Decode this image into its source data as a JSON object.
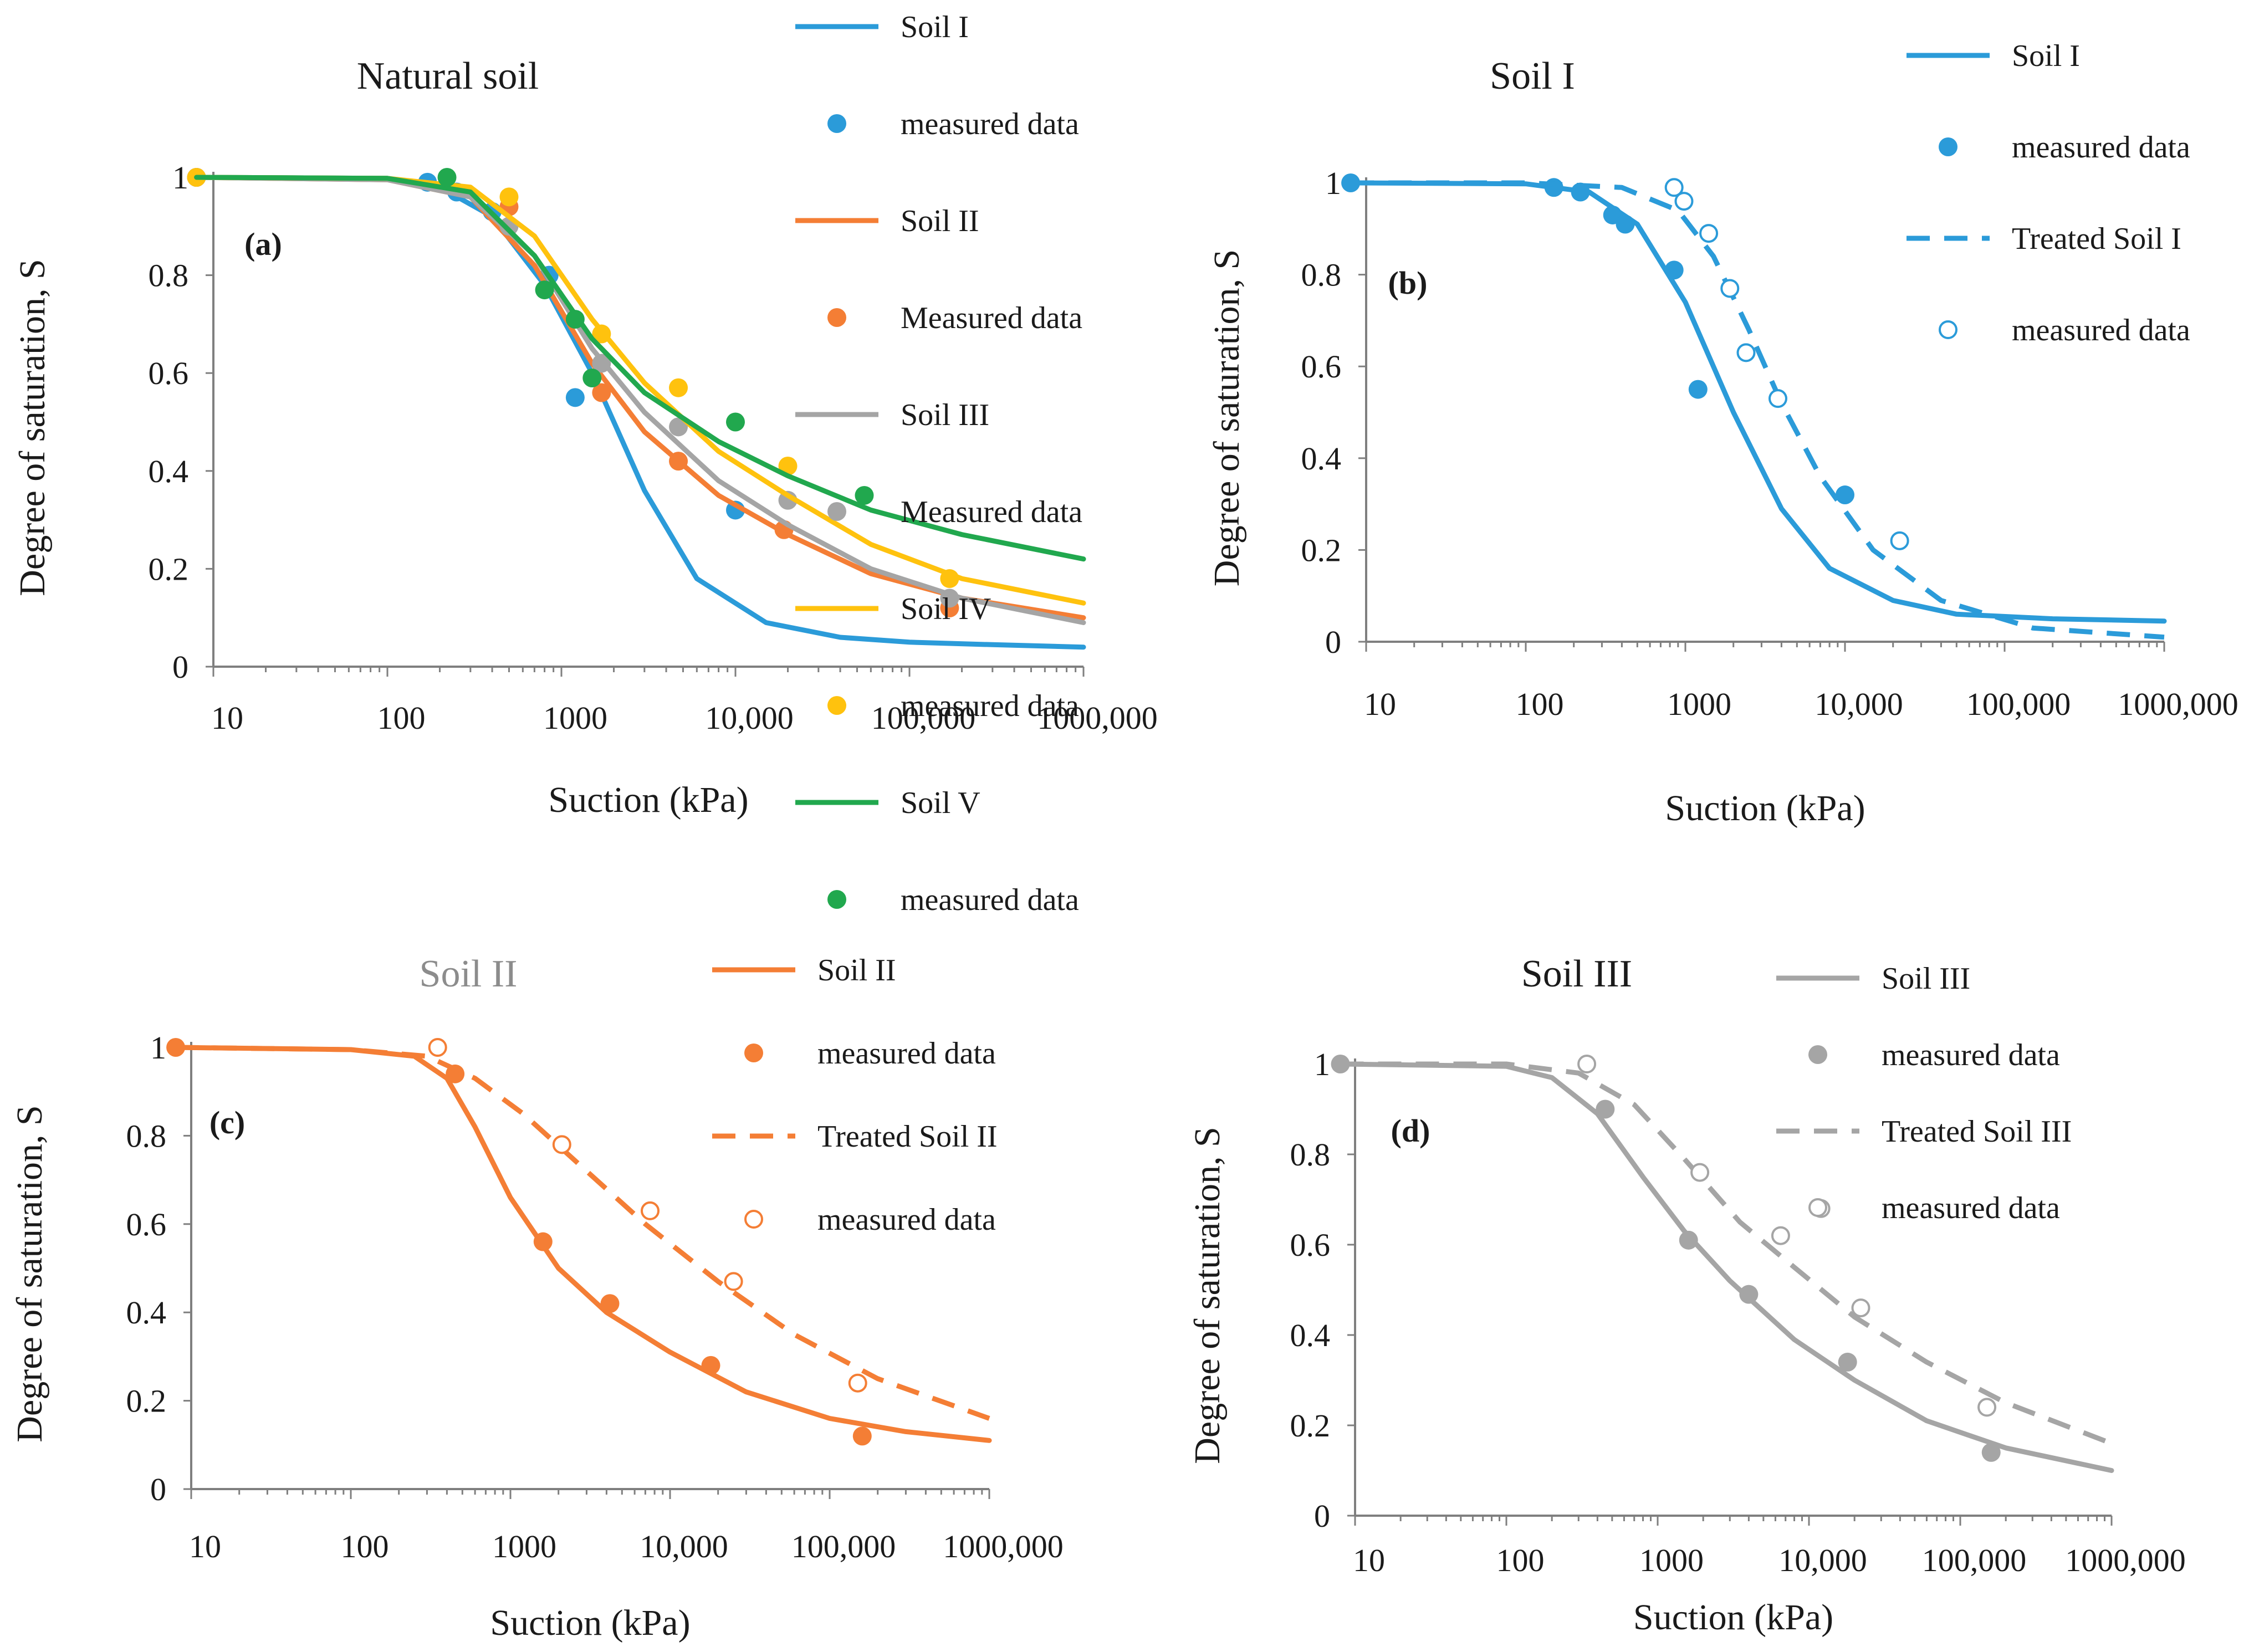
{
  "figure": {
    "colors": {
      "soil_I": "#2b9bd9",
      "soil_II": "#f47e35",
      "soil_III": "#a5a5a5",
      "soil_IV": "#ffc20e",
      "soil_V": "#21a84e",
      "title_grey": "#8c8c8c"
    }
  },
  "chart_data": [
    {
      "id": "a",
      "type": "line",
      "title": "Natural soil",
      "panel_label": "(a)",
      "xlabel": "Suction (kPa)",
      "ylabel": "Degree of saturation, S",
      "xscale": "log",
      "xlim": [
        10,
        1000000
      ],
      "ylim": [
        0,
        1
      ],
      "x_tick_values": [
        10,
        100,
        1000,
        10000,
        100000,
        1000000
      ],
      "x_tick_labels": [
        "10",
        "100",
        "1000",
        "10,000",
        "100,000",
        "1000,000"
      ],
      "y_tick_values": [
        0,
        0.2,
        0.4,
        0.6,
        0.8,
        1
      ],
      "y_tick_labels": [
        "0",
        "0.2",
        "0.4",
        "0.6",
        "0.8",
        "1"
      ],
      "legend_position": "top-right-outside",
      "series": [
        {
          "name": "Soil I",
          "kind": "line",
          "style": "solid",
          "color": "#2b9bd9",
          "x": [
            8,
            100,
            200,
            400,
            800,
            1500,
            3000,
            6000,
            15000,
            40000,
            100000,
            300000,
            1000000
          ],
          "y": [
            1,
            0.998,
            0.98,
            0.92,
            0.78,
            0.6,
            0.36,
            0.18,
            0.09,
            0.06,
            0.05,
            0.045,
            0.04
          ]
        },
        {
          "name": "measured data",
          "kind": "marker",
          "filled": true,
          "color": "#2b9bd9",
          "x": [
            8,
            170,
            250,
            400,
            850,
            1200,
            10000
          ],
          "y": [
            1,
            0.99,
            0.97,
            0.93,
            0.8,
            0.55,
            0.32
          ]
        },
        {
          "name": "Soil II",
          "kind": "line",
          "style": "solid",
          "color": "#f47e35",
          "x": [
            8,
            100,
            300,
            700,
            1500,
            3000,
            8000,
            20000,
            60000,
            200000,
            1000000
          ],
          "y": [
            1,
            0.995,
            0.96,
            0.82,
            0.62,
            0.48,
            0.35,
            0.27,
            0.19,
            0.14,
            0.1
          ]
        },
        {
          "name": "Measured data",
          "kind": "marker",
          "filled": true,
          "color": "#f47e35",
          "x": [
            8,
            500,
            1700,
            4700,
            19000,
            170000
          ],
          "y": [
            1,
            0.94,
            0.56,
            0.42,
            0.28,
            0.12
          ]
        },
        {
          "name": "Soil III",
          "kind": "line",
          "style": "solid",
          "color": "#a5a5a5",
          "x": [
            8,
            100,
            300,
            700,
            1500,
            3000,
            8000,
            20000,
            60000,
            200000,
            1000000
          ],
          "y": [
            1,
            0.995,
            0.96,
            0.84,
            0.65,
            0.52,
            0.38,
            0.29,
            0.2,
            0.14,
            0.09
          ]
        },
        {
          "name": "Measured data",
          "kind": "marker",
          "filled": true,
          "color": "#a5a5a5",
          "x": [
            8,
            500,
            1700,
            4700,
            20000,
            170000
          ],
          "y": [
            1,
            0.9,
            0.62,
            0.49,
            0.34,
            0.14
          ]
        },
        {
          "name": "Soil IV",
          "kind": "line",
          "style": "solid",
          "color": "#ffc20e",
          "x": [
            8,
            100,
            300,
            700,
            1500,
            3000,
            8000,
            20000,
            60000,
            200000,
            1000000
          ],
          "y": [
            1,
            0.998,
            0.98,
            0.88,
            0.71,
            0.58,
            0.44,
            0.35,
            0.25,
            0.18,
            0.13
          ]
        },
        {
          "name": "measured data",
          "kind": "marker",
          "filled": true,
          "color": "#ffc20e",
          "x": [
            8,
            500,
            1700,
            4700,
            20000,
            170000
          ],
          "y": [
            1,
            0.96,
            0.68,
            0.57,
            0.41,
            0.18
          ]
        },
        {
          "name": "Soil V",
          "kind": "line",
          "style": "solid",
          "color": "#21a84e",
          "x": [
            8,
            100,
            300,
            700,
            1500,
            3000,
            8000,
            20000,
            60000,
            200000,
            1000000
          ],
          "y": [
            1,
            0.998,
            0.97,
            0.84,
            0.67,
            0.56,
            0.46,
            0.39,
            0.32,
            0.27,
            0.22
          ]
        },
        {
          "name": "measured data",
          "kind": "marker",
          "filled": true,
          "color": "#21a84e",
          "x": [
            220,
            800,
            1200,
            1500,
            10000,
            55000
          ],
          "y": [
            1,
            0.77,
            0.71,
            0.59,
            0.5,
            0.35
          ]
        }
      ]
    },
    {
      "id": "b",
      "type": "line",
      "title": "Soil I",
      "panel_label": "(b)",
      "xlabel": "Suction (kPa)",
      "ylabel": "Degree of saturation, S",
      "xscale": "log",
      "xlim": [
        10,
        1000000
      ],
      "ylim": [
        0,
        1
      ],
      "x_tick_values": [
        10,
        100,
        1000,
        10000,
        100000,
        1000000
      ],
      "x_tick_labels": [
        "10",
        "100",
        "1000",
        "10,000",
        "100,000",
        "1000,000"
      ],
      "y_tick_values": [
        0,
        0.2,
        0.4,
        0.6,
        0.8,
        1
      ],
      "y_tick_labels": [
        "0",
        "0.2",
        "0.4",
        "0.6",
        "0.8",
        "1"
      ],
      "legend_position": "top-right-outside",
      "series": [
        {
          "name": "Soil I",
          "kind": "line",
          "style": "solid",
          "color": "#2b9bd9",
          "x": [
            8,
            100,
            250,
            500,
            1000,
            2000,
            4000,
            8000,
            20000,
            50000,
            200000,
            1000000
          ],
          "y": [
            1,
            0.998,
            0.98,
            0.91,
            0.74,
            0.5,
            0.29,
            0.16,
            0.09,
            0.06,
            0.05,
            0.045
          ]
        },
        {
          "name": "measured data",
          "kind": "marker",
          "filled": true,
          "color": "#2b9bd9",
          "x": [
            8,
            150,
            220,
            350,
            420,
            850,
            1200,
            10000
          ],
          "y": [
            1,
            0.99,
            0.98,
            0.93,
            0.91,
            0.81,
            0.55,
            0.32
          ]
        },
        {
          "name": "Treated Soil I",
          "kind": "line",
          "style": "dashed",
          "color": "#2b9bd9",
          "x": [
            8,
            100,
            400,
            900,
            1500,
            2500,
            4000,
            7000,
            15000,
            40000,
            150000,
            1000000
          ],
          "y": [
            1,
            1,
            0.99,
            0.94,
            0.84,
            0.68,
            0.52,
            0.36,
            0.2,
            0.09,
            0.03,
            0.01
          ]
        },
        {
          "name": "measured data",
          "kind": "marker",
          "filled": false,
          "color": "#2b9bd9",
          "x": [
            850,
            980,
            1400,
            1900,
            2400,
            3800,
            22000
          ],
          "y": [
            0.99,
            0.96,
            0.89,
            0.77,
            0.63,
            0.53,
            0.22
          ]
        }
      ]
    },
    {
      "id": "c",
      "type": "line",
      "title": "Soil II",
      "panel_label": "(c)",
      "xlabel": "Suction (kPa)",
      "ylabel": "Degree of saturation, S",
      "xscale": "log",
      "xlim": [
        10,
        1000000
      ],
      "ylim": [
        0,
        1
      ],
      "x_tick_values": [
        10,
        100,
        1000,
        10000,
        100000,
        1000000
      ],
      "x_tick_labels": [
        "10",
        "100",
        "1000",
        "10,000",
        "100,000",
        "1000,000"
      ],
      "y_tick_values": [
        0,
        0.2,
        0.4,
        0.6,
        0.8,
        1
      ],
      "y_tick_labels": [
        "0",
        "0.2",
        "0.4",
        "0.6",
        "0.8",
        "1"
      ],
      "legend_position": "top-right",
      "series": [
        {
          "name": "Soil II",
          "kind": "line",
          "style": "solid",
          "color": "#f47e35",
          "x": [
            8,
            100,
            250,
            400,
            600,
            1000,
            2000,
            4000,
            10000,
            30000,
            100000,
            300000,
            1000000
          ],
          "y": [
            1,
            0.995,
            0.98,
            0.93,
            0.82,
            0.66,
            0.5,
            0.4,
            0.31,
            0.22,
            0.16,
            0.13,
            0.11
          ]
        },
        {
          "name": "measured data",
          "kind": "marker",
          "filled": true,
          "color": "#f47e35",
          "x": [
            8,
            450,
            1600,
            4200,
            18000,
            160000
          ],
          "y": [
            1,
            0.94,
            0.56,
            0.42,
            0.28,
            0.12
          ]
        },
        {
          "name": "Treated Soil II",
          "kind": "line",
          "style": "dashed",
          "color": "#f47e35",
          "x": [
            8,
            100,
            300,
            600,
            1200,
            3000,
            7000,
            20000,
            60000,
            200000,
            1000000
          ],
          "y": [
            1,
            0.995,
            0.98,
            0.93,
            0.85,
            0.72,
            0.6,
            0.47,
            0.35,
            0.25,
            0.16
          ]
        },
        {
          "name": "measured data",
          "kind": "marker",
          "filled": false,
          "color": "#f47e35",
          "x": [
            350,
            2100,
            7500,
            25000,
            150000
          ],
          "y": [
            1,
            0.78,
            0.63,
            0.47,
            0.24
          ]
        }
      ]
    },
    {
      "id": "d",
      "type": "line",
      "title": "Soil III",
      "panel_label": "(d)",
      "xlabel": "Suction (kPa)",
      "ylabel": "Degree of saturation, S",
      "xscale": "log",
      "xlim": [
        10,
        1000000
      ],
      "ylim": [
        0,
        1
      ],
      "x_tick_values": [
        10,
        100,
        1000,
        10000,
        100000,
        1000000
      ],
      "x_tick_labels": [
        "10",
        "100",
        "1000",
        "10,000",
        "100,000",
        "1000,000"
      ],
      "y_tick_values": [
        0,
        0.2,
        0.4,
        0.6,
        0.8,
        1
      ],
      "y_tick_labels": [
        "0",
        "0.2",
        "0.4",
        "0.6",
        "0.8",
        "1"
      ],
      "legend_position": "top-right",
      "series": [
        {
          "name": "Soil III",
          "kind": "line",
          "style": "solid",
          "color": "#a5a5a5",
          "x": [
            8,
            100,
            200,
            400,
            800,
            1500,
            3000,
            8000,
            20000,
            60000,
            200000,
            1000000
          ],
          "y": [
            1,
            0.995,
            0.97,
            0.89,
            0.75,
            0.63,
            0.52,
            0.39,
            0.3,
            0.21,
            0.15,
            0.1
          ]
        },
        {
          "name": "measured data",
          "kind": "marker",
          "filled": true,
          "color": "#a5a5a5",
          "x": [
            8,
            450,
            1600,
            4000,
            18000,
            160000
          ],
          "y": [
            1,
            0.9,
            0.61,
            0.49,
            0.34,
            0.14
          ]
        },
        {
          "name": "Treated Soil III",
          "kind": "line",
          "style": "dashed",
          "color": "#a5a5a5",
          "x": [
            8,
            100,
            300,
            700,
            1500,
            3500,
            8000,
            20000,
            60000,
            200000,
            1000000
          ],
          "y": [
            1,
            1,
            0.98,
            0.91,
            0.79,
            0.65,
            0.55,
            0.44,
            0.34,
            0.25,
            0.16
          ]
        },
        {
          "name": "measured data",
          "kind": "marker",
          "filled": false,
          "color": "#a5a5a5",
          "x": [
            340,
            1900,
            6500,
            12000,
            22000,
            150000
          ],
          "y": [
            1,
            0.76,
            0.62,
            0.68,
            0.46,
            0.24
          ]
        }
      ]
    }
  ]
}
